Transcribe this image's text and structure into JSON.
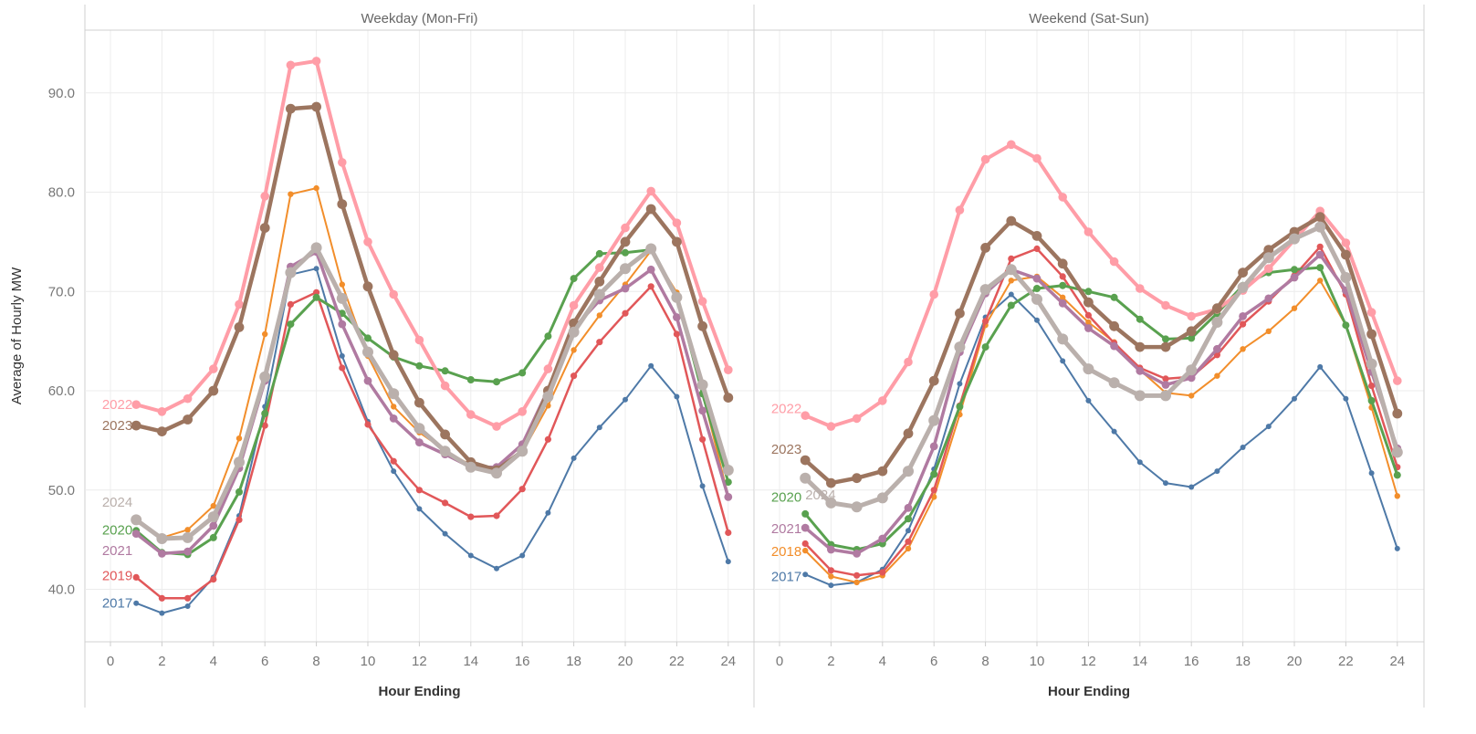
{
  "chart_data": {
    "type": "line",
    "title": "",
    "ylabel": "Average of Hourly MW",
    "xlabel": "Hour Ending",
    "ylim": [
      35,
      95
    ],
    "xlim": [
      -1,
      25
    ],
    "y_ticks": [
      "40.0",
      "50.0",
      "60.0",
      "70.0",
      "80.0",
      "90.0"
    ],
    "x_ticks": [
      "0",
      "2",
      "4",
      "6",
      "8",
      "10",
      "12",
      "14",
      "16",
      "18",
      "20",
      "22",
      "24"
    ],
    "grid": true,
    "x": [
      1,
      2,
      3,
      4,
      5,
      6,
      7,
      8,
      9,
      10,
      11,
      12,
      13,
      14,
      15,
      16,
      17,
      18,
      19,
      20,
      21,
      22,
      23,
      24
    ],
    "colors": {
      "2017": "#4e79a7",
      "2018": "#f28e2b",
      "2019": "#e15759",
      "2020": "#59a14f",
      "2021": "#b07aa1",
      "2022": "#ff9da7",
      "2023": "#9c755f",
      "2024": "#bab0ac"
    },
    "panels": [
      {
        "title": "Weekday (Mon-Fri)",
        "series": [
          {
            "name": "2017",
            "values": [
              38.6,
              37.6,
              38.3,
              41.2,
              47.4,
              58.4,
              71.7,
              72.3,
              63.5,
              56.9,
              51.9,
              48.1,
              45.6,
              43.4,
              42.1,
              43.4,
              47.7,
              53.2,
              56.3,
              59.1,
              62.5,
              59.4,
              50.4,
              42.8
            ]
          },
          {
            "name": "2018",
            "values": [
              46.8,
              45.2,
              46.0,
              48.4,
              55.2,
              65.7,
              79.8,
              80.4,
              70.7,
              63.5,
              58.4,
              55.8,
              54.0,
              52.5,
              52.2,
              53.8,
              58.5,
              64.1,
              67.6,
              70.7,
              74.1,
              69.9,
              59.8,
              49.4
            ]
          },
          {
            "name": "2019",
            "values": [
              41.2,
              39.1,
              39.1,
              41.0,
              47.0,
              56.5,
              68.7,
              69.9,
              62.3,
              56.6,
              52.9,
              50.0,
              48.7,
              47.3,
              47.4,
              50.1,
              55.1,
              61.5,
              64.9,
              67.8,
              70.5,
              65.7,
              55.1,
              45.7
            ]
          },
          {
            "name": "2020",
            "values": [
              45.9,
              43.7,
              43.5,
              45.2,
              49.8,
              57.7,
              66.7,
              69.4,
              67.8,
              65.3,
              63.4,
              62.5,
              62.0,
              61.1,
              60.9,
              61.8,
              65.5,
              71.3,
              73.8,
              73.9,
              74.2,
              69.6,
              59.7,
              50.8
            ]
          },
          {
            "name": "2021",
            "values": [
              45.6,
              43.6,
              43.8,
              46.4,
              52.2,
              61.0,
              72.5,
              74.0,
              66.7,
              61.0,
              57.2,
              54.8,
              53.6,
              52.3,
              52.3,
              54.6,
              60.1,
              66.3,
              69.1,
              70.3,
              72.2,
              67.4,
              58.0,
              49.3
            ]
          },
          {
            "name": "2022",
            "values": [
              58.6,
              57.9,
              59.2,
              62.2,
              68.7,
              79.6,
              92.8,
              93.2,
              83.0,
              75.0,
              69.7,
              65.1,
              60.5,
              57.6,
              56.4,
              57.9,
              62.2,
              68.6,
              72.4,
              76.4,
              80.1,
              76.9,
              69.0,
              62.1
            ]
          },
          {
            "name": "2023",
            "values": [
              56.5,
              55.9,
              57.1,
              60.0,
              66.4,
              76.4,
              88.4,
              88.6,
              78.8,
              70.5,
              63.6,
              58.8,
              55.6,
              52.8,
              52.0,
              53.9,
              60.0,
              66.8,
              71.0,
              75.0,
              78.3,
              75.0,
              66.5,
              59.3
            ]
          },
          {
            "name": "2024",
            "values": [
              47.0,
              45.1,
              45.2,
              47.3,
              52.8,
              61.4,
              71.9,
              74.4,
              69.3,
              63.9,
              59.7,
              56.2,
              53.9,
              52.3,
              51.7,
              53.9,
              59.4,
              65.9,
              69.7,
              72.3,
              74.3,
              69.4,
              60.6,
              52.0
            ]
          }
        ],
        "legend": [
          "2022",
          "2023",
          "2024",
          "2020",
          "2021",
          "2019",
          "2017"
        ]
      },
      {
        "title": "Weekend (Sat-Sun)",
        "series": [
          {
            "name": "2017",
            "values": [
              41.5,
              40.4,
              40.7,
              42.0,
              45.9,
              52.1,
              60.7,
              67.4,
              69.7,
              67.1,
              63.0,
              59.0,
              55.9,
              52.8,
              50.7,
              50.3,
              51.9,
              54.3,
              56.4,
              59.2,
              62.4,
              59.2,
              51.7,
              44.1
            ]
          },
          {
            "name": "2018",
            "values": [
              43.9,
              41.3,
              40.7,
              41.4,
              44.1,
              49.3,
              57.6,
              66.6,
              71.1,
              71.5,
              69.4,
              66.9,
              64.9,
              62.1,
              59.8,
              59.5,
              61.5,
              64.2,
              66.0,
              68.3,
              71.1,
              66.6,
              58.3,
              49.4
            ]
          },
          {
            "name": "2019",
            "values": [
              44.6,
              41.9,
              41.4,
              41.7,
              44.8,
              50.0,
              58.5,
              67.0,
              73.3,
              74.3,
              71.5,
              67.6,
              64.8,
              62.3,
              61.2,
              61.4,
              63.6,
              66.7,
              69.0,
              71.6,
              74.5,
              69.7,
              60.5,
              52.3
            ]
          },
          {
            "name": "2020",
            "values": [
              47.6,
              44.5,
              44.0,
              44.6,
              47.1,
              51.6,
              58.4,
              64.4,
              68.6,
              70.3,
              70.6,
              70.0,
              69.4,
              67.2,
              65.2,
              65.3,
              67.8,
              70.6,
              71.9,
              72.2,
              72.4,
              66.6,
              59.0,
              51.5
            ]
          },
          {
            "name": "2021",
            "values": [
              46.2,
              44.0,
              43.6,
              45.1,
              48.2,
              54.4,
              63.9,
              69.8,
              72.2,
              71.3,
              68.8,
              66.3,
              64.5,
              62.0,
              60.6,
              61.3,
              64.2,
              67.5,
              69.3,
              71.4,
              73.7,
              70.1,
              61.9,
              54.2
            ]
          },
          {
            "name": "2022",
            "values": [
              57.5,
              56.4,
              57.2,
              59.0,
              62.9,
              69.7,
              78.2,
              83.3,
              84.8,
              83.4,
              79.5,
              76.0,
              73.0,
              70.3,
              68.6,
              67.5,
              68.2,
              70.1,
              72.3,
              75.2,
              78.1,
              74.9,
              67.9,
              61.0
            ]
          },
          {
            "name": "2023",
            "values": [
              53.0,
              50.7,
              51.2,
              51.9,
              55.7,
              61.0,
              67.8,
              74.4,
              77.1,
              75.6,
              72.8,
              68.9,
              66.5,
              64.4,
              64.4,
              66.0,
              68.3,
              71.9,
              74.2,
              76.0,
              77.5,
              73.7,
              65.7,
              57.7
            ]
          },
          {
            "name": "2024",
            "values": [
              51.2,
              48.7,
              48.3,
              49.2,
              51.9,
              57.0,
              64.4,
              70.2,
              72.2,
              69.2,
              65.2,
              62.2,
              60.8,
              59.5,
              59.5,
              62.1,
              66.9,
              70.4,
              73.4,
              75.3,
              76.5,
              71.4,
              62.7,
              53.8
            ]
          }
        ],
        "legend": [
          "2022",
          "2023",
          "2020",
          "2024",
          "2021",
          "2018",
          "2017"
        ]
      }
    ]
  }
}
